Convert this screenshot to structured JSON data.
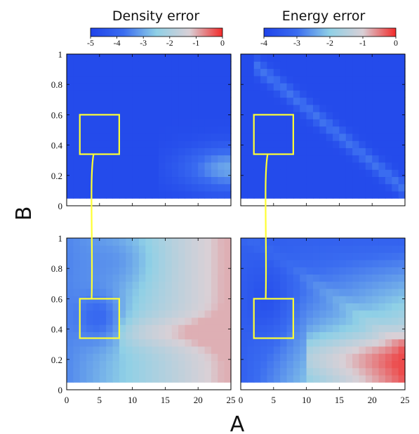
{
  "chart_data": {
    "type": "heatmap",
    "xlabel": "A",
    "ylabel": "B",
    "xlim": [
      0,
      25
    ],
    "ylim": [
      0,
      1
    ],
    "x_ticks": [
      "0",
      "5",
      "10",
      "15",
      "20",
      "25"
    ],
    "y_ticks": [
      "0",
      "0.2",
      "0.4",
      "0.6",
      "0.8",
      "1"
    ],
    "columns": [
      {
        "title": "Density error",
        "colorbar": {
          "ticks": [
            "-5",
            "-4",
            "-3",
            "-2",
            "-1",
            "0"
          ],
          "range": [
            -5,
            0
          ]
        },
        "colormap": [
          "#1f43ea",
          "#3a6cf0",
          "#8fd0e6",
          "#d9d0d6",
          "#f22a2a"
        ]
      },
      {
        "title": "Energy error",
        "colorbar": {
          "ticks": [
            "-4",
            "-3",
            "-2",
            "-1",
            "0"
          ],
          "range": [
            -4,
            0
          ]
        },
        "colormap": [
          "#1f43ea",
          "#3a6cf0",
          "#8fd0e6",
          "#d9d0d6",
          "#f22a2a"
        ]
      }
    ],
    "highlight_box": {
      "a_range": [
        2,
        8
      ],
      "b_range": [
        0.34,
        0.6
      ],
      "color": "#ffff33"
    },
    "panels": [
      {
        "row": "top",
        "column": "Density error",
        "approx_log_error": "about -5 (blue) almost everywhere; about -3.5 patch at A 16–25, B 0.1–0.4"
      },
      {
        "row": "top",
        "column": "Energy error",
        "approx_log_error": "about -4 background; about -3 diagonal band from A 3, B 0.9 to A 25, B 0.1"
      },
      {
        "row": "bottom",
        "column": "Density error",
        "approx_log_error": "about -4 in A 2–8, B 0.35–0.6; rising to about -2 to -1.5 at large A; peaks near -1 around B 0.35"
      },
      {
        "row": "bottom",
        "column": "Energy error",
        "approx_log_error": "about -4 in A 2–8, B 0.35–0.6; rising to about -1 to -0.5 at A 12–25, B 0.05–0.4"
      }
    ]
  }
}
